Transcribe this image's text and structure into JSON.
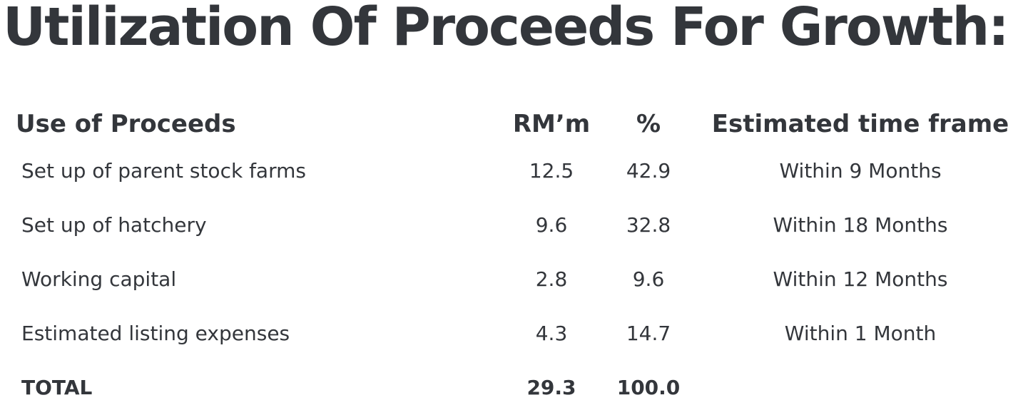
{
  "header": {
    "title": "Utilization Of Proceeds For Growth:"
  },
  "table": {
    "columns": [
      "Use of Proceeds",
      "RM’m",
      "%",
      "Estimated time frame"
    ],
    "rows": [
      [
        "Set up of parent stock farms",
        "12.5",
        "42.9",
        "Within 9 Months"
      ],
      [
        "Set up of hatchery",
        "9.6",
        "32.8",
        "Within 18 Months"
      ],
      [
        "Working capital",
        "2.8",
        "9.6",
        "Within 12 Months"
      ],
      [
        "Estimated listing expenses",
        "4.3",
        "14.7",
        "Within 1 Month"
      ]
    ],
    "total": [
      "TOTAL",
      "29.3",
      "100.0"
    ]
  }
}
